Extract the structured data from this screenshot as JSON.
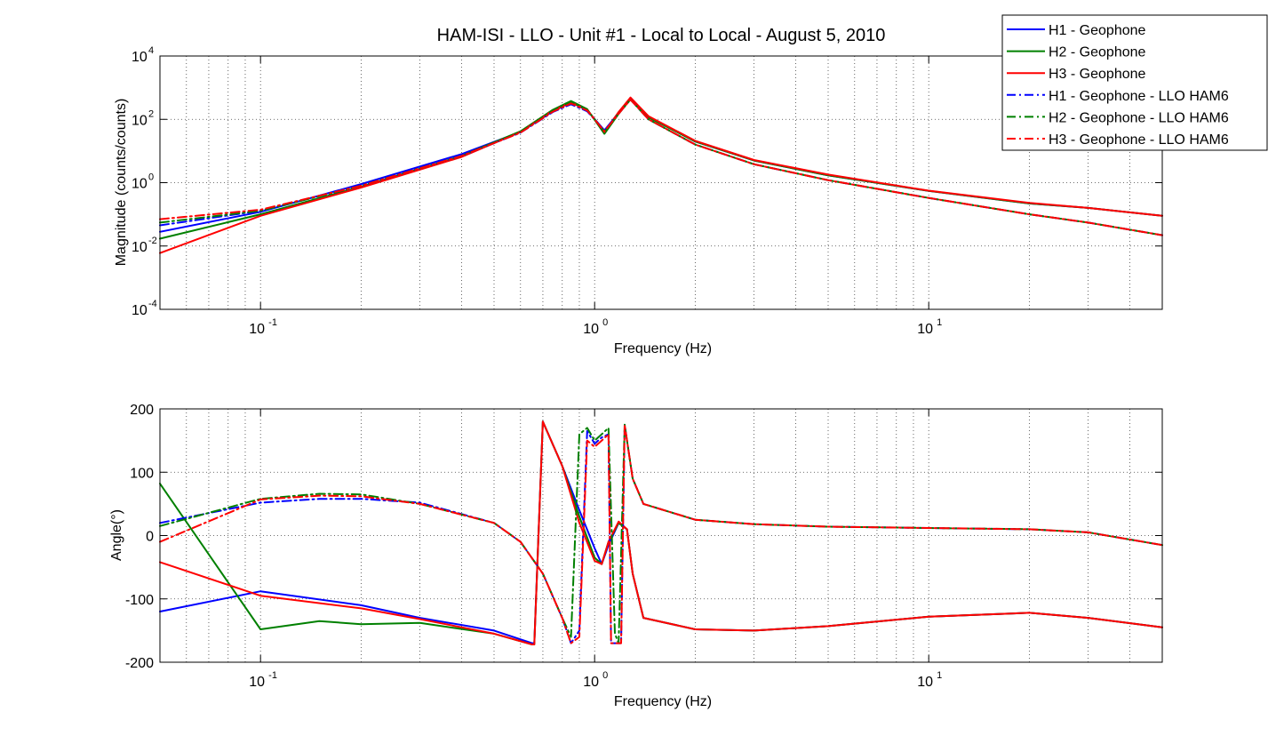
{
  "chart_data": [
    {
      "type": "line",
      "panel": "magnitude",
      "title": "HAM-ISI - LLO - Unit #1 - Local to Local - August 5, 2010",
      "xlabel": "Frequency (Hz)",
      "ylabel": "Magnitude (counts/counts)",
      "x_scale": "log",
      "y_scale": "log",
      "xlim": [
        0.05,
        50
      ],
      "ylim": [
        0.0001,
        10000
      ],
      "x_ticks": [
        {
          "value": 0.1,
          "base": "10",
          "exp": "-1"
        },
        {
          "value": 1,
          "base": "10",
          "exp": "0"
        },
        {
          "value": 10,
          "base": "10",
          "exp": "1"
        }
      ],
      "y_ticks": [
        {
          "value": 0.0001,
          "base": "10",
          "exp": "-4"
        },
        {
          "value": 0.01,
          "base": "10",
          "exp": "-2"
        },
        {
          "value": 1,
          "base": "10",
          "exp": "0"
        },
        {
          "value": 100,
          "base": "10",
          "exp": "2"
        },
        {
          "value": 10000,
          "base": "10",
          "exp": "4"
        }
      ],
      "grid": true,
      "legend_position": "top-right",
      "series": [
        {
          "name": "H1 - Geophone",
          "color": "#0000ff",
          "style": "solid",
          "x": [
            0.05,
            0.1,
            0.2,
            0.4,
            0.6,
            0.75,
            0.85,
            0.95,
            1.07,
            1.18,
            1.28,
            1.45,
            2,
            3,
            5,
            10,
            20,
            30,
            50
          ],
          "y": [
            0.028,
            0.12,
            0.9,
            8,
            40,
            180,
            350,
            190,
            45,
            160,
            480,
            120,
            20,
            5,
            1.7,
            0.55,
            0.22,
            0.16,
            0.09
          ]
        },
        {
          "name": "H2 - Geophone",
          "color": "#008000",
          "style": "solid",
          "x": [
            0.05,
            0.1,
            0.2,
            0.4,
            0.6,
            0.75,
            0.85,
            0.95,
            1.07,
            1.18,
            1.28,
            1.45,
            2,
            3,
            5,
            10,
            20,
            30,
            50
          ],
          "y": [
            0.017,
            0.1,
            0.75,
            7,
            42,
            200,
            380,
            210,
            35,
            150,
            460,
            115,
            20,
            5,
            1.7,
            0.55,
            0.22,
            0.16,
            0.09
          ]
        },
        {
          "name": "H3 - Geophone",
          "color": "#ff0000",
          "style": "solid",
          "x": [
            0.05,
            0.1,
            0.2,
            0.4,
            0.6,
            0.75,
            0.85,
            0.95,
            1.07,
            1.18,
            1.28,
            1.45,
            2,
            3,
            5,
            10,
            20,
            30,
            50
          ],
          "y": [
            0.006,
            0.09,
            0.7,
            6.5,
            40,
            190,
            340,
            200,
            40,
            170,
            490,
            125,
            21,
            5.2,
            1.8,
            0.56,
            0.23,
            0.16,
            0.09
          ]
        },
        {
          "name": "H1 - Geophone - LLO HAM6",
          "color": "#0000ff",
          "style": "dashdot",
          "x": [
            0.05,
            0.1,
            0.2,
            0.4,
            0.6,
            0.75,
            0.85,
            0.95,
            1.07,
            1.18,
            1.28,
            1.45,
            2,
            3,
            5,
            10,
            20,
            30,
            50
          ],
          "y": [
            0.045,
            0.13,
            0.8,
            7,
            38,
            170,
            300,
            180,
            45,
            150,
            420,
            100,
            16,
            3.8,
            1.2,
            0.33,
            0.1,
            0.055,
            0.022
          ]
        },
        {
          "name": "H2 - Geophone - LLO HAM6",
          "color": "#008000",
          "style": "dashdot",
          "x": [
            0.05,
            0.1,
            0.2,
            0.4,
            0.6,
            0.75,
            0.85,
            0.95,
            1.07,
            1.18,
            1.28,
            1.45,
            2,
            3,
            5,
            10,
            20,
            30,
            50
          ],
          "y": [
            0.055,
            0.13,
            0.8,
            7,
            40,
            190,
            360,
            200,
            40,
            150,
            420,
            100,
            16,
            3.8,
            1.2,
            0.33,
            0.1,
            0.055,
            0.022
          ]
        },
        {
          "name": "H3 - Geophone - LLO HAM6",
          "color": "#ff0000",
          "style": "dashdot",
          "x": [
            0.05,
            0.1,
            0.2,
            0.4,
            0.6,
            0.75,
            0.85,
            0.95,
            1.07,
            1.18,
            1.28,
            1.45,
            2,
            3,
            5,
            10,
            20,
            30,
            50
          ],
          "y": [
            0.07,
            0.14,
            0.8,
            7,
            38,
            175,
            320,
            190,
            42,
            150,
            420,
            100,
            16,
            3.8,
            1.2,
            0.33,
            0.1,
            0.055,
            0.022
          ]
        }
      ]
    },
    {
      "type": "line",
      "panel": "phase",
      "title": "",
      "xlabel": "Frequency (Hz)",
      "ylabel": "Angle(°)",
      "x_scale": "log",
      "y_scale": "linear",
      "xlim": [
        0.05,
        50
      ],
      "ylim": [
        -200,
        200
      ],
      "x_ticks": [
        {
          "value": 0.1,
          "base": "10",
          "exp": "-1"
        },
        {
          "value": 1,
          "base": "10",
          "exp": "0"
        },
        {
          "value": 10,
          "base": "10",
          "exp": "1"
        }
      ],
      "y_ticks": [
        {
          "value": -200,
          "label": "-200"
        },
        {
          "value": -100,
          "label": "-100"
        },
        {
          "value": 0,
          "label": "0"
        },
        {
          "value": 100,
          "label": "100"
        },
        {
          "value": 200,
          "label": "200"
        }
      ],
      "grid": true,
      "series": [
        {
          "name": "H1 - Geophone",
          "color": "#0000ff",
          "style": "solid",
          "x": [
            0.05,
            0.1,
            0.2,
            0.3,
            0.5,
            0.65,
            0.66,
            0.7,
            0.8,
            0.9,
            1.0,
            1.05,
            1.1,
            1.18,
            1.25,
            1.3,
            1.4,
            2,
            3,
            5,
            10,
            20,
            30,
            50
          ],
          "y": [
            -120,
            -88,
            -110,
            -130,
            -150,
            -170,
            -170,
            180,
            110,
            40,
            -20,
            -45,
            -15,
            20,
            10,
            -60,
            -130,
            -148,
            -150,
            -143,
            -128,
            -122,
            -130,
            -145
          ]
        },
        {
          "name": "H2 - Geophone",
          "color": "#008000",
          "style": "solid",
          "x": [
            0.05,
            0.1,
            0.15,
            0.2,
            0.3,
            0.5,
            0.65,
            0.66,
            0.7,
            0.8,
            0.9,
            1.0,
            1.05,
            1.1,
            1.18,
            1.25,
            1.3,
            1.4,
            2,
            3,
            5,
            10,
            20,
            30,
            50
          ],
          "y": [
            82,
            -148,
            -135,
            -140,
            -138,
            -155,
            -172,
            -172,
            180,
            110,
            30,
            -35,
            -45,
            -10,
            20,
            10,
            -60,
            -130,
            -148,
            -150,
            -143,
            -128,
            -122,
            -130,
            -145
          ]
        },
        {
          "name": "H3 - Geophone",
          "color": "#ff0000",
          "style": "solid",
          "x": [
            0.05,
            0.1,
            0.2,
            0.3,
            0.5,
            0.65,
            0.66,
            0.7,
            0.8,
            0.9,
            1.0,
            1.05,
            1.1,
            1.18,
            1.25,
            1.3,
            1.4,
            2,
            3,
            5,
            10,
            20,
            30,
            50
          ],
          "y": [
            -42,
            -95,
            -115,
            -132,
            -155,
            -172,
            -172,
            180,
            110,
            20,
            -40,
            -45,
            -10,
            22,
            10,
            -60,
            -130,
            -148,
            -150,
            -143,
            -128,
            -122,
            -130,
            -145
          ]
        },
        {
          "name": "H1 - Geophone - LLO HAM6",
          "color": "#0000ff",
          "style": "dashdot",
          "x": [
            0.05,
            0.1,
            0.15,
            0.2,
            0.3,
            0.5,
            0.6,
            0.7,
            0.8,
            0.85,
            0.9,
            0.95,
            1.0,
            1.05,
            1.1,
            1.12,
            1.2,
            1.23,
            1.3,
            1.4,
            2,
            3,
            5,
            10,
            20,
            30,
            50
          ],
          "y": [
            20,
            52,
            58,
            58,
            52,
            20,
            -10,
            -60,
            -130,
            -170,
            -150,
            165,
            145,
            155,
            160,
            -170,
            -170,
            175,
            90,
            50,
            25,
            18,
            14,
            12,
            10,
            5,
            -15
          ]
        },
        {
          "name": "H2 - Geophone - LLO HAM6",
          "color": "#008000",
          "style": "dashdot",
          "x": [
            0.05,
            0.1,
            0.15,
            0.2,
            0.3,
            0.5,
            0.6,
            0.7,
            0.8,
            0.85,
            0.9,
            0.95,
            1.0,
            1.05,
            1.1,
            1.15,
            1.18,
            1.23,
            1.3,
            1.4,
            2,
            3,
            5,
            10,
            20,
            30,
            50
          ],
          "y": [
            15,
            58,
            66,
            65,
            50,
            20,
            -10,
            -60,
            -130,
            -160,
            160,
            170,
            150,
            160,
            170,
            -155,
            -170,
            175,
            90,
            50,
            25,
            18,
            14,
            12,
            10,
            5,
            -15
          ]
        },
        {
          "name": "H3 - Geophone - LLO HAM6",
          "color": "#ff0000",
          "style": "dashdot",
          "x": [
            0.05,
            0.1,
            0.15,
            0.2,
            0.3,
            0.5,
            0.6,
            0.7,
            0.8,
            0.85,
            0.9,
            0.95,
            1.0,
            1.05,
            1.1,
            1.12,
            1.2,
            1.23,
            1.3,
            1.4,
            2,
            3,
            5,
            10,
            20,
            30,
            50
          ],
          "y": [
            -10,
            57,
            63,
            62,
            50,
            20,
            -10,
            -60,
            -130,
            -170,
            -160,
            150,
            140,
            150,
            160,
            -170,
            -170,
            175,
            90,
            50,
            25,
            18,
            14,
            12,
            10,
            5,
            -15
          ]
        }
      ]
    }
  ]
}
